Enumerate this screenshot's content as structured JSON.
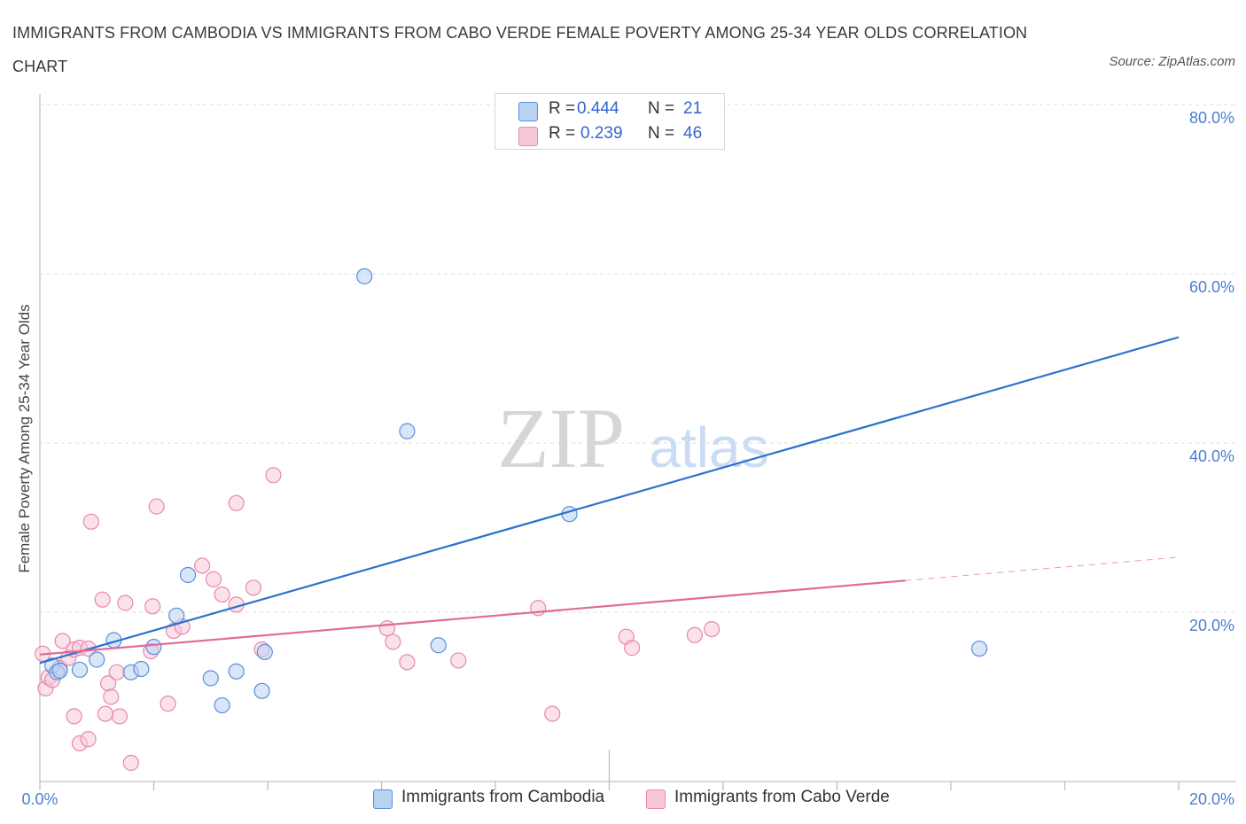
{
  "chart_data": {
    "type": "scatter",
    "title": "IMMIGRANTS FROM CAMBODIA VS IMMIGRANTS FROM CABO VERDE FEMALE POVERTY AMONG 25-34 YEAR OLDS CORRELATION CHART",
    "source": "Source: ZipAtlas.com",
    "ylabel": "Female Poverty Among 25-34 Year Olds",
    "xlabel": "",
    "xlim": [
      0,
      20
    ],
    "ylim": [
      0,
      80
    ],
    "x_tick_labels": [
      "0.0%",
      "20.0%"
    ],
    "y_ticks": [
      {
        "value": 20,
        "label": "20.0%"
      },
      {
        "value": 40,
        "label": "40.0%"
      },
      {
        "value": 60,
        "label": "60.0%"
      },
      {
        "value": 80,
        "label": "80.0%"
      }
    ],
    "watermark": {
      "zip": "ZIP",
      "atlas": "atlas"
    },
    "series": [
      {
        "name": "Immigrants from Cambodia",
        "color": "#5b8fd9",
        "fill": "#b9d1f3",
        "line_color": "#2a72d0",
        "R": "0.444",
        "N": "21",
        "trend": {
          "x0": 0,
          "y0": 14.0,
          "x1": 20,
          "y1": 52.5,
          "dashed_from": null
        },
        "points": [
          [
            0.22,
            13.7
          ],
          [
            0.3,
            12.9
          ],
          [
            0.35,
            13.1
          ],
          [
            0.7,
            13.2
          ],
          [
            1.0,
            14.4
          ],
          [
            1.3,
            16.7
          ],
          [
            1.6,
            12.9
          ],
          [
            1.78,
            13.3
          ],
          [
            2.0,
            15.9
          ],
          [
            2.4,
            19.6
          ],
          [
            2.6,
            24.4
          ],
          [
            3.0,
            12.2
          ],
          [
            3.2,
            9.0
          ],
          [
            3.45,
            13.0
          ],
          [
            3.9,
            10.7
          ],
          [
            3.95,
            15.3
          ],
          [
            5.7,
            59.7
          ],
          [
            6.45,
            41.4
          ],
          [
            7.0,
            16.1
          ],
          [
            9.3,
            31.6
          ],
          [
            16.5,
            15.7
          ]
        ]
      },
      {
        "name": "Immigrants from Cabo Verde",
        "color": "#e58aaa",
        "fill": "#f7c9d8",
        "line_color": "#e06b97",
        "R": "0.239",
        "N": "46",
        "trend": {
          "x0": 0,
          "y0": 15.0,
          "x1": 20,
          "y1": 26.5,
          "dashed_from": 15.2
        },
        "points": [
          [
            0.05,
            15.1
          ],
          [
            0.1,
            11.0
          ],
          [
            0.15,
            12.3
          ],
          [
            0.22,
            12.0
          ],
          [
            0.35,
            13.4
          ],
          [
            0.4,
            16.6
          ],
          [
            0.5,
            14.6
          ],
          [
            0.6,
            15.6
          ],
          [
            0.7,
            15.8
          ],
          [
            0.85,
            15.7
          ],
          [
            0.6,
            7.7
          ],
          [
            0.7,
            4.5
          ],
          [
            0.85,
            5.0
          ],
          [
            1.1,
            21.5
          ],
          [
            1.15,
            8.0
          ],
          [
            1.2,
            11.6
          ],
          [
            1.25,
            10.0
          ],
          [
            1.35,
            12.9
          ],
          [
            1.4,
            7.7
          ],
          [
            1.5,
            21.1
          ],
          [
            1.6,
            2.2
          ],
          [
            1.95,
            15.4
          ],
          [
            1.98,
            20.7
          ],
          [
            2.05,
            32.5
          ],
          [
            2.25,
            9.2
          ],
          [
            2.35,
            17.8
          ],
          [
            2.5,
            18.3
          ],
          [
            2.85,
            25.5
          ],
          [
            3.05,
            23.9
          ],
          [
            3.2,
            22.1
          ],
          [
            3.45,
            20.9
          ],
          [
            3.45,
            32.9
          ],
          [
            3.75,
            22.9
          ],
          [
            3.9,
            15.6
          ],
          [
            4.1,
            36.2
          ],
          [
            0.9,
            30.7
          ],
          [
            6.1,
            18.1
          ],
          [
            6.2,
            16.5
          ],
          [
            6.45,
            14.1
          ],
          [
            7.35,
            14.3
          ],
          [
            8.75,
            20.5
          ],
          [
            9.0,
            8.0
          ],
          [
            10.3,
            17.1
          ],
          [
            10.4,
            15.8
          ],
          [
            11.5,
            17.3
          ],
          [
            11.8,
            18.0
          ]
        ]
      }
    ]
  }
}
